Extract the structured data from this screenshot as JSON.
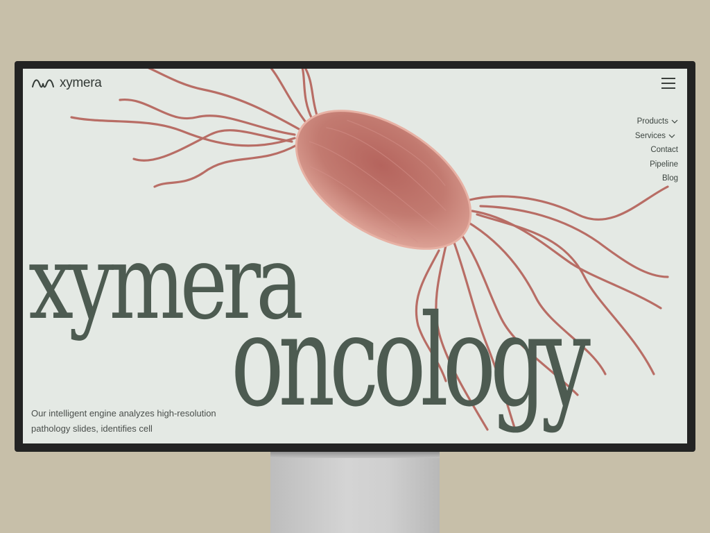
{
  "brand": {
    "name": "xymera"
  },
  "nav": {
    "items": [
      {
        "label": "Products",
        "has_dropdown": true
      },
      {
        "label": "Services",
        "has_dropdown": true
      },
      {
        "label": "Contact",
        "has_dropdown": false
      },
      {
        "label": "Pipeline",
        "has_dropdown": false
      },
      {
        "label": "Blog",
        "has_dropdown": false
      }
    ],
    "menu_icon": "hamburger-icon",
    "dropdown_icon": "chevron-down-icon"
  },
  "hero": {
    "title_line1": "xymera",
    "title_line2": "oncology",
    "description": "Our intelligent engine analyzes high-resolution pathology slides, identifies cell",
    "illustration": "bacterium-illustration"
  },
  "colors": {
    "screen_bg": "#e4e9e4",
    "headline": "#4d5b51",
    "bacterium": "#b86a62",
    "backdrop": "#c7bfa9",
    "bezel": "#232323"
  }
}
